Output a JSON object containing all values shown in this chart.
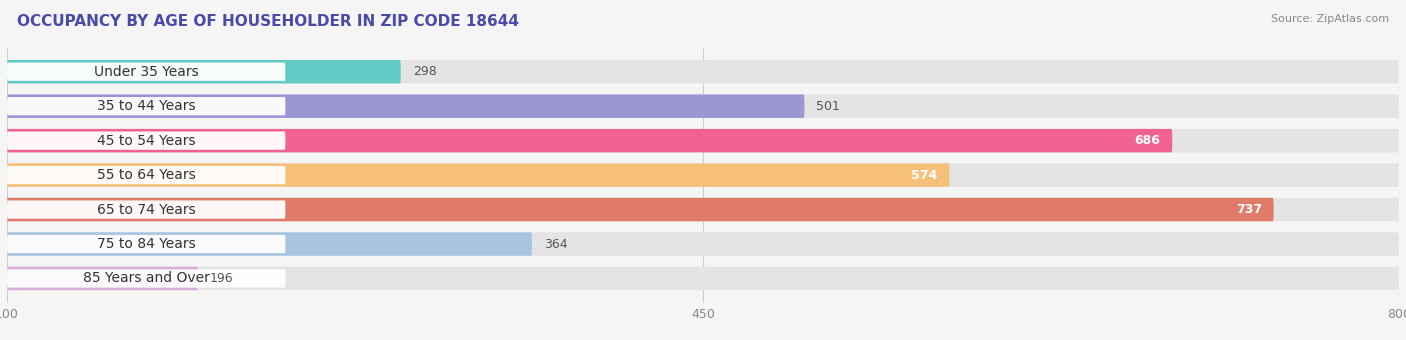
{
  "title": "OCCUPANCY BY AGE OF HOUSEHOLDER IN ZIP CODE 18644",
  "source": "Source: ZipAtlas.com",
  "categories": [
    "Under 35 Years",
    "35 to 44 Years",
    "45 to 54 Years",
    "55 to 64 Years",
    "65 to 74 Years",
    "75 to 84 Years",
    "85 Years and Over"
  ],
  "values": [
    298,
    501,
    686,
    574,
    737,
    364,
    196
  ],
  "bar_colors": [
    "#62cac4",
    "#9b96d4",
    "#f06292",
    "#f7c07a",
    "#e07b6a",
    "#a8c4e0",
    "#d4aed4"
  ],
  "background_color": "#f5f5f5",
  "bar_bg_color": "#e4e4e4",
  "label_bg_color": "#ffffff",
  "xlim_min": 100,
  "xlim_max": 800,
  "xticks": [
    100,
    450,
    800
  ],
  "bar_height": 0.68,
  "label_fontsize": 10,
  "value_fontsize": 9,
  "title_fontsize": 11,
  "value_inside_color": "#ffffff",
  "value_outside_color": "#555555",
  "inside_threshold": 550
}
